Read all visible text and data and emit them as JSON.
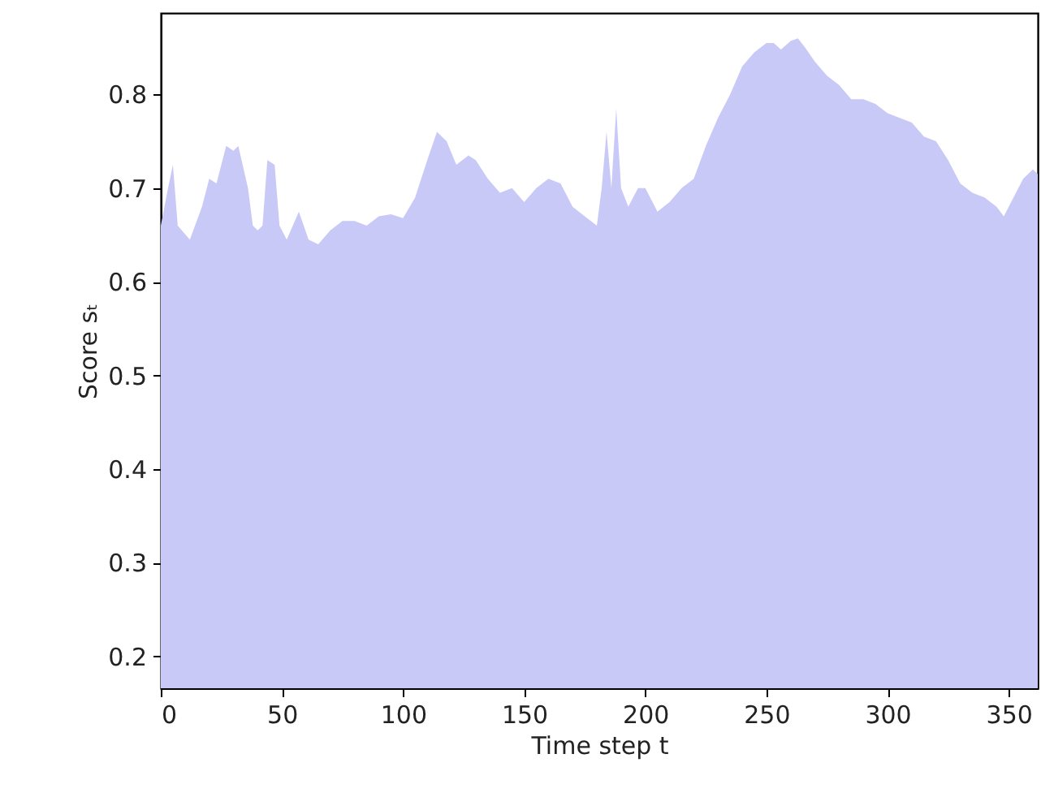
{
  "chart_data": {
    "type": "area",
    "xlabel": "Time step t",
    "ylabel": "Score sₜ",
    "x": [
      0,
      3,
      5,
      7,
      12,
      17,
      20,
      23,
      27,
      30,
      32,
      36,
      38,
      40,
      42,
      44,
      47,
      49,
      52,
      57,
      61,
      65,
      70,
      75,
      80,
      85,
      90,
      95,
      100,
      105,
      110,
      114,
      118,
      122,
      127,
      130,
      135,
      140,
      145,
      150,
      155,
      160,
      165,
      170,
      175,
      180,
      182,
      184,
      186,
      188,
      190,
      193,
      197,
      200,
      205,
      210,
      215,
      220,
      225,
      230,
      235,
      240,
      245,
      250,
      253,
      256,
      260,
      263,
      266,
      270,
      275,
      280,
      285,
      290,
      295,
      300,
      305,
      310,
      315,
      320,
      325,
      330,
      335,
      340,
      345,
      348,
      352,
      356,
      360,
      362
    ],
    "series": [
      {
        "color": "#c9c9f8",
        "values": [
          0.66,
          0.7,
          0.725,
          0.66,
          0.645,
          0.68,
          0.71,
          0.705,
          0.745,
          0.74,
          0.745,
          0.7,
          0.66,
          0.655,
          0.66,
          0.73,
          0.725,
          0.66,
          0.645,
          0.675,
          0.645,
          0.64,
          0.655,
          0.665,
          0.665,
          0.66,
          0.67,
          0.672,
          0.668,
          0.69,
          0.73,
          0.76,
          0.75,
          0.725,
          0.735,
          0.73,
          0.71,
          0.695,
          0.7,
          0.685,
          0.7,
          0.71,
          0.705,
          0.68,
          0.67,
          0.66,
          0.7,
          0.76,
          0.7,
          0.785,
          0.7,
          0.68,
          0.7,
          0.7,
          0.675,
          0.685,
          0.7,
          0.71,
          0.745,
          0.775,
          0.8,
          0.83,
          0.845,
          0.855,
          0.855,
          0.848,
          0.857,
          0.86,
          0.85,
          0.835,
          0.82,
          0.81,
          0.795,
          0.795,
          0.79,
          0.78,
          0.775,
          0.77,
          0.755,
          0.75,
          0.73,
          0.705,
          0.695,
          0.69,
          0.68,
          0.67,
          0.69,
          0.71,
          0.72,
          0.715
        ]
      }
    ],
    "xlim": [
      0,
      362
    ],
    "xticks": [
      0,
      50,
      100,
      150,
      200,
      250,
      300,
      350
    ],
    "ylim": [
      0.166,
      0.887
    ],
    "yticks": [
      0.2,
      0.3,
      0.4,
      0.5,
      0.6,
      0.7,
      0.8
    ],
    "grid": false
  }
}
